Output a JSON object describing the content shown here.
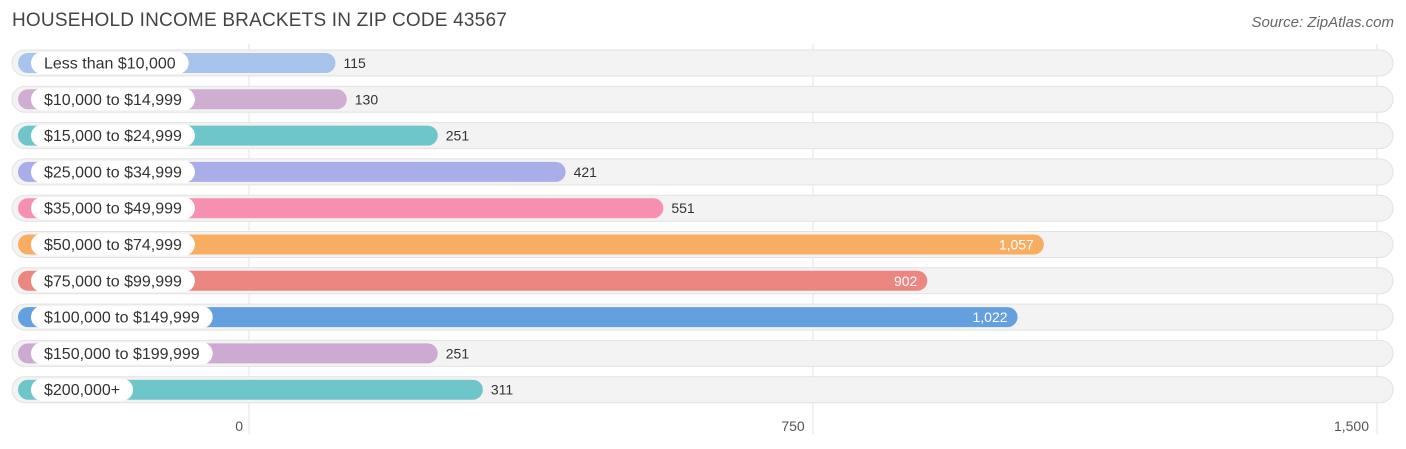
{
  "header": {
    "title": "HOUSEHOLD INCOME BRACKETS IN ZIP CODE 43567",
    "source": "Source: ZipAtlas.com"
  },
  "chart_data": {
    "type": "bar",
    "orientation": "horizontal",
    "title": "HOUSEHOLD INCOME BRACKETS IN ZIP CODE 43567",
    "categories": [
      "Less than $10,000",
      "$10,000 to $14,999",
      "$15,000 to $24,999",
      "$25,000 to $34,999",
      "$35,000 to $49,999",
      "$50,000 to $74,999",
      "$75,000 to $99,999",
      "$100,000 to $149,999",
      "$150,000 to $199,999",
      "$200,000+"
    ],
    "values": [
      115,
      130,
      251,
      421,
      551,
      1057,
      902,
      1022,
      251,
      311
    ],
    "value_labels": [
      "115",
      "130",
      "251",
      "421",
      "551",
      "1,057",
      "902",
      "1,022",
      "251",
      "311"
    ],
    "colors": [
      "#a8c4ec",
      "#d0aed2",
      "#6ec6cb",
      "#a9aee8",
      "#f78fb0",
      "#f9ad62",
      "#eb8680",
      "#649fdf",
      "#cdaad2",
      "#6ec6cb"
    ],
    "xlim": [
      0,
      1500
    ],
    "xticks": [
      0,
      750,
      1500
    ],
    "xtick_labels": [
      "0",
      "750",
      "1,500"
    ],
    "grid": true
  }
}
